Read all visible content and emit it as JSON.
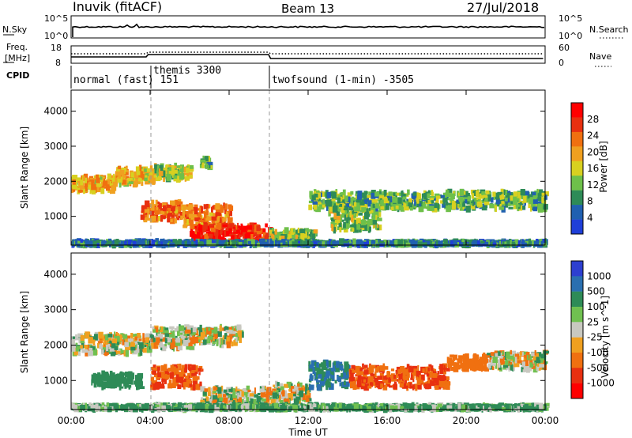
{
  "header": {
    "station": "Inuvik (fitACF)",
    "beam": "Beam 13",
    "date": "27/Jul/2018"
  },
  "top_panels": {
    "nsky_label": "N.Sky",
    "nsky_ticks": [
      "10^5",
      "10^0"
    ],
    "nsearch_label": "N.Search",
    "nsearch_ticks": [
      "10^5",
      "10^0"
    ],
    "freq_label_1": "Freq.",
    "freq_label_2": "[MHz]",
    "freq_ticks": [
      "18",
      "8"
    ],
    "nave_label": "Nave",
    "nave_ticks": [
      "60",
      "0"
    ],
    "cpid_label": "CPID",
    "cpid_segments": [
      {
        "name": "normal (fast) 151",
        "start_ut": 0.0
      },
      {
        "name": "themis 3300",
        "start_ut": 3.9
      },
      {
        "name": "twofsound (1-min) -3505",
        "start_ut": 10.0
      }
    ]
  },
  "x_axis": {
    "title": "Time UT",
    "ticks": [
      "00:00",
      "04:00",
      "08:00",
      "12:00",
      "16:00",
      "20:00",
      "00:00"
    ]
  },
  "power_panel": {
    "ylabel": "Slant Range [km]",
    "yticks": [
      "1000",
      "2000",
      "3000",
      "4000"
    ],
    "colorbar_label": "Power [dB]",
    "colorbar_ticks": [
      "4",
      "8",
      "12",
      "16",
      "20",
      "24",
      "28"
    ],
    "colors": [
      "#1f3fd8",
      "#2060b0",
      "#2e8b57",
      "#6ec04a",
      "#d8d020",
      "#f0a020",
      "#f07010",
      "#e83010",
      "#ff0000"
    ]
  },
  "velocity_panel": {
    "ylabel": "Slant Range [km]",
    "yticks": [
      "1000",
      "2000",
      "3000",
      "4000"
    ],
    "colorbar_label": "Velocity [m s^-1]",
    "colorbar_ticks": [
      "1000",
      "500",
      "100",
      "25",
      "-25",
      "-100",
      "-500",
      "-1000"
    ],
    "colors": [
      "#2d3fd0",
      "#2a6fb0",
      "#2e8b57",
      "#70c050",
      "#c8c8c0",
      "#f0a020",
      "#f07010",
      "#e83010",
      "#ff0000"
    ]
  },
  "chart_data": [
    {
      "type": "heatmap",
      "title": "Power",
      "xlabel": "Time UT",
      "ylabel": "Slant Range [km]",
      "xlim": [
        0,
        24
      ],
      "ylim": [
        180,
        4600
      ],
      "colorbar": {
        "label": "Power [dB]",
        "ticks": [
          4,
          8,
          12,
          16,
          20,
          24,
          28
        ]
      },
      "regions": [
        {
          "t": [
            0.0,
            2.2
          ],
          "r": [
            1700,
            2150
          ],
          "dB": 20
        },
        {
          "t": [
            2.2,
            4.2
          ],
          "r": [
            1900,
            2400
          ],
          "dB": 18
        },
        {
          "t": [
            4.2,
            6.0
          ],
          "r": [
            2050,
            2450
          ],
          "dB": 16
        },
        {
          "t": [
            6.5,
            7.0
          ],
          "r": [
            2400,
            2650
          ],
          "dB": 12
        },
        {
          "t": [
            3.5,
            5.5
          ],
          "r": [
            850,
            1400
          ],
          "dB": 24
        },
        {
          "t": [
            5.5,
            8.0
          ],
          "r": [
            700,
            1300
          ],
          "dB": 24
        },
        {
          "t": [
            6.0,
            10.0
          ],
          "r": [
            250,
            750
          ],
          "dB": 30
        },
        {
          "t": [
            10.0,
            12.3
          ],
          "r": [
            300,
            600
          ],
          "dB": 14
        },
        {
          "t": [
            13.0,
            15.5
          ],
          "r": [
            600,
            1200
          ],
          "dB": 14
        },
        {
          "t": [
            12.0,
            24.0
          ],
          "r": [
            1200,
            1700
          ],
          "dB": 12
        },
        {
          "t": [
            0.0,
            24.0
          ],
          "r": [
            180,
            280
          ],
          "dB": 8
        }
      ]
    },
    {
      "type": "heatmap",
      "title": "Velocity",
      "xlabel": "Time UT",
      "ylabel": "Slant Range [km]",
      "xlim": [
        0,
        24
      ],
      "ylim": [
        180,
        4600
      ],
      "colorbar": {
        "label": "Velocity [m s^-1]",
        "ticks": [
          1000,
          500,
          100,
          25,
          -25,
          -100,
          -500,
          -1000
        ]
      },
      "regions": [
        {
          "t": [
            0.0,
            4.0
          ],
          "r": [
            1750,
            2300
          ],
          "v": 0
        },
        {
          "t": [
            4.0,
            6.0
          ],
          "r": [
            1900,
            2500
          ],
          "v": 0
        },
        {
          "t": [
            6.0,
            8.5
          ],
          "r": [
            2000,
            2500
          ],
          "v": 0
        },
        {
          "t": [
            4.0,
            6.5
          ],
          "r": [
            800,
            1400
          ],
          "v": -300
        },
        {
          "t": [
            1.0,
            3.5
          ],
          "r": [
            800,
            1200
          ],
          "v": 200
        },
        {
          "t": [
            6.5,
            10.0
          ],
          "r": [
            250,
            800
          ],
          "v": 0
        },
        {
          "t": [
            10.0,
            12.0
          ],
          "r": [
            400,
            900
          ],
          "v": 0
        },
        {
          "t": [
            12.0,
            14.0
          ],
          "r": [
            800,
            1500
          ],
          "v": 300
        },
        {
          "t": [
            14.0,
            19.0
          ],
          "r": [
            800,
            1400
          ],
          "v": -300
        },
        {
          "t": [
            19.0,
            21.0
          ],
          "r": [
            1300,
            1700
          ],
          "v": -200
        },
        {
          "t": [
            21.0,
            24.0
          ],
          "r": [
            1300,
            1800
          ],
          "v": 0
        },
        {
          "t": [
            0.0,
            24.0
          ],
          "r": [
            180,
            300
          ],
          "v": 80
        }
      ]
    }
  ]
}
